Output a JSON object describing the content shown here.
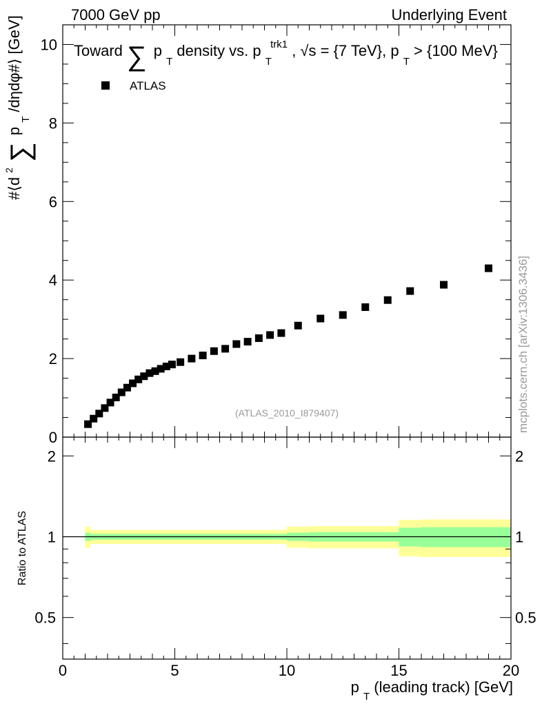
{
  "header": {
    "energy_label": "7000 GeV pp",
    "category_label": "Underlying Event"
  },
  "watermark": "mcplots.cern.ch [arXiv:1306.3436]",
  "analysis_label": "(ATLAS_2010_I879407)",
  "chart_data": [
    {
      "type": "scatter",
      "title_parts": {
        "prefix": "Toward",
        "sum_symbol": "∑",
        "var": "p",
        "var_sub": "T",
        "middle": " density vs. p",
        "trk_sub": "T",
        "trk_sup": "trk1",
        "suffix": ", √s = {7 TeV}, p",
        "cut_sub": "T",
        "cut_text": " > {100 MeV}"
      },
      "ylabel_parts": {
        "open": "#⟨d",
        "sup2": "2",
        "sum_symbol": "∑",
        "var": "p",
        "var_sub": "T",
        "close": " /dηdφ#⟩ [GeV]"
      },
      "xlim": [
        0,
        20
      ],
      "ylim": [
        0,
        10.5
      ],
      "y_ticks": [
        0,
        2,
        4,
        6,
        8,
        10
      ],
      "y_tick_labels": [
        "0",
        "2",
        "4",
        "6",
        "8",
        "10"
      ],
      "grid": false,
      "legend_position": "top-left",
      "series": [
        {
          "name": "ATLAS",
          "color": "#000000",
          "marker": "square",
          "x": [
            1.125,
            1.375,
            1.625,
            1.875,
            2.125,
            2.375,
            2.625,
            2.875,
            3.125,
            3.375,
            3.625,
            3.875,
            4.125,
            4.375,
            4.625,
            4.875,
            5.25,
            5.75,
            6.25,
            6.75,
            7.25,
            7.75,
            8.25,
            8.75,
            9.25,
            9.75,
            10.5,
            11.5,
            12.5,
            13.5,
            14.5,
            15.5,
            17.0,
            19.0
          ],
          "y": [
            0.33,
            0.47,
            0.6,
            0.74,
            0.88,
            1.01,
            1.14,
            1.26,
            1.37,
            1.47,
            1.55,
            1.63,
            1.68,
            1.74,
            1.8,
            1.85,
            1.91,
            2.0,
            2.08,
            2.19,
            2.25,
            2.37,
            2.43,
            2.52,
            2.6,
            2.65,
            2.84,
            3.02,
            3.11,
            3.31,
            3.49,
            3.72,
            3.88,
            4.3
          ]
        }
      ]
    },
    {
      "type": "area",
      "ylabel": "Ratio to ATLAS",
      "xlabel_parts": {
        "var": "p",
        "var_sub": "T",
        "rest": " (leading track) [GeV]"
      },
      "xlim": [
        0,
        20
      ],
      "ylim": [
        0.35,
        2.35
      ],
      "x_ticks": [
        0,
        5,
        10,
        15,
        20
      ],
      "x_tick_labels": [
        "0",
        "5",
        "10",
        "15",
        "20"
      ],
      "y_ticks": [
        0.5,
        1,
        2
      ],
      "y_tick_labels": [
        "0.5",
        "1",
        "2"
      ],
      "reference_line": 1.0,
      "bands": {
        "stat_color": "#99ff99",
        "total_color": "#ffff99",
        "bins": [
          {
            "x0": 1.0,
            "x1": 1.25,
            "total": [
              0.91,
              1.09
            ],
            "stat": [
              0.965,
              1.035
            ]
          },
          {
            "x0": 1.25,
            "x1": 10.0,
            "total": [
              0.94,
              1.06
            ],
            "stat": [
              0.975,
              1.025
            ]
          },
          {
            "x0": 10.0,
            "x1": 11.0,
            "total": [
              0.91,
              1.09
            ],
            "stat": [
              0.965,
              1.035
            ]
          },
          {
            "x0": 11.0,
            "x1": 15.0,
            "total": [
              0.905,
              1.095
            ],
            "stat": [
              0.96,
              1.04
            ]
          },
          {
            "x0": 15.0,
            "x1": 16.0,
            "total": [
              0.845,
              1.155
            ],
            "stat": [
              0.92,
              1.08
            ]
          },
          {
            "x0": 16.0,
            "x1": 20.0,
            "total": [
              0.84,
              1.16
            ],
            "stat": [
              0.915,
              1.085
            ]
          }
        ]
      }
    }
  ]
}
